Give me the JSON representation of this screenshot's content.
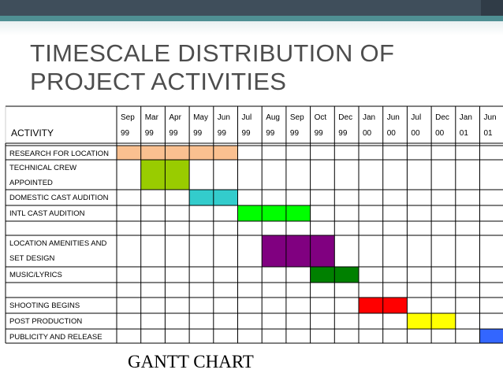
{
  "slide": {
    "title": "TIMESCALE DISTRIBUTION OF PROJECT ACTIVITIES",
    "caption": "GANTT CHART"
  },
  "chart_data": {
    "type": "gantt",
    "header_label": "ACTIVITY",
    "months": [
      [
        "Sep",
        "99"
      ],
      [
        "Mar",
        "99"
      ],
      [
        "Apr",
        "99"
      ],
      [
        "May",
        "99"
      ],
      [
        "Jun",
        "99"
      ],
      [
        "Jul",
        "99"
      ],
      [
        "Aug",
        "99"
      ],
      [
        "Sep",
        "99"
      ],
      [
        "Oct",
        "99"
      ],
      [
        "Dec",
        "99"
      ],
      [
        "Jan",
        "00"
      ],
      [
        "Jun",
        "00"
      ],
      [
        "Jul",
        "00"
      ],
      [
        "Dec",
        "00"
      ],
      [
        "Jan",
        "01"
      ],
      [
        "Jun",
        "01"
      ]
    ],
    "rows": [
      {
        "lines": [
          "RESEARCH FOR LOCATION"
        ],
        "start": 0,
        "end": 4,
        "color": "#fac090"
      },
      {
        "lines": [
          "TECHNICAL  CREW",
          "APPOINTED"
        ],
        "start": 1,
        "end": 2,
        "color": "#99cc00"
      },
      {
        "lines": [
          "DOMESTIC CAST AUDITION"
        ],
        "start": 3,
        "end": 4,
        "color": "#33cccc"
      },
      {
        "lines": [
          "INTL CAST AUDITION"
        ],
        "start": 5,
        "end": 7,
        "color": "#00ff00"
      },
      {
        "lines": [],
        "start": null,
        "end": null,
        "color": null
      },
      {
        "lines": [
          "LOCATION AMENITIES AND",
          "SET DESIGN"
        ],
        "start": 6,
        "end": 8,
        "color": "#800080"
      },
      {
        "lines": [
          "MUSIC/LYRICS"
        ],
        "start": 8,
        "end": 9,
        "color": "#008000"
      },
      {
        "lines": [],
        "start": null,
        "end": null,
        "color": null
      },
      {
        "lines": [
          "SHOOTING BEGINS"
        ],
        "start": 10,
        "end": 11,
        "color": "#ff0000"
      },
      {
        "lines": [
          "POST PRODUCTION"
        ],
        "start": 12,
        "end": 13,
        "color": "#ffff00"
      },
      {
        "lines": [
          "PUBLICITY AND RELEASE"
        ],
        "start": 15,
        "end": 15,
        "color": "#3366ff"
      }
    ]
  }
}
